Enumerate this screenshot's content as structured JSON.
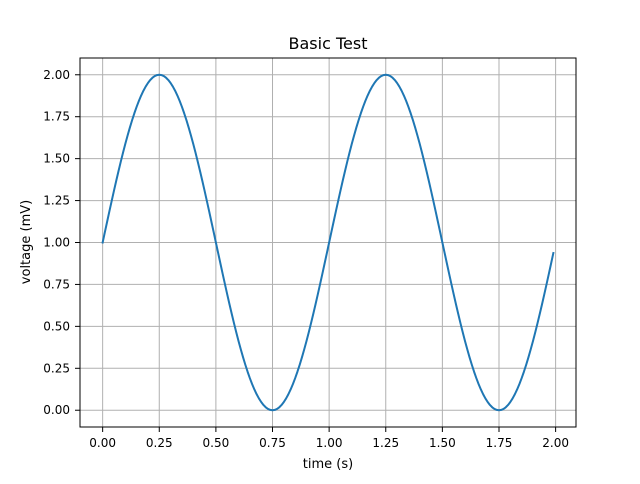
{
  "chart_data": {
    "type": "line",
    "title": "Basic Test",
    "xlabel": "time (s)",
    "ylabel": "voltage (mV)",
    "xlim": [
      -0.1,
      2.09
    ],
    "ylim": [
      -0.1,
      2.1
    ],
    "grid": true,
    "line_color": "#1f77b4",
    "x_ticks": [
      0.0,
      0.25,
      0.5,
      0.75,
      1.0,
      1.25,
      1.5,
      1.75,
      2.0
    ],
    "x_tick_labels": [
      "0.00",
      "0.25",
      "0.50",
      "0.75",
      "1.00",
      "1.25",
      "1.50",
      "1.75",
      "2.00"
    ],
    "y_ticks": [
      0.0,
      0.25,
      0.5,
      0.75,
      1.0,
      1.25,
      1.5,
      1.75,
      2.0
    ],
    "y_tick_labels": [
      "0.00",
      "0.25",
      "0.50",
      "0.75",
      "1.00",
      "1.25",
      "1.50",
      "1.75",
      "2.00"
    ],
    "series": [
      {
        "function": "1 + sin(2*pi*t)",
        "x_start": 0.0,
        "x_end": 1.99,
        "x_step": 0.01
      }
    ]
  }
}
